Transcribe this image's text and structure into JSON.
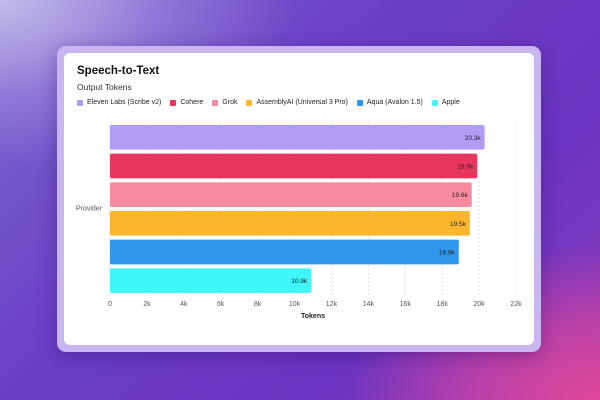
{
  "chart_data": {
    "type": "bar",
    "orientation": "horizontal",
    "title": "Speech-to-Text",
    "subtitle": "Output Tokens",
    "ylabel": "Provider",
    "xlabel": "Tokens",
    "xlim": [
      0,
      22000
    ],
    "xticks": [
      {
        "value": 0,
        "label": "0"
      },
      {
        "value": 2000,
        "label": "2k"
      },
      {
        "value": 4000,
        "label": "4k"
      },
      {
        "value": 6000,
        "label": "6k"
      },
      {
        "value": 8000,
        "label": "8k"
      },
      {
        "value": 10000,
        "label": "10k"
      },
      {
        "value": 12000,
        "label": "12k"
      },
      {
        "value": 14000,
        "label": "14k"
      },
      {
        "value": 16000,
        "label": "16k"
      },
      {
        "value": 18000,
        "label": "18k"
      },
      {
        "value": 20000,
        "label": "20k"
      },
      {
        "value": 22000,
        "label": "22k"
      }
    ],
    "grid": true,
    "legend_position": "top-left",
    "series": [
      {
        "name": "Eleven Labs (Scribe v2)",
        "value": 20300,
        "label": "20.3k",
        "color": "#b19cf5"
      },
      {
        "name": "Cohere",
        "value": 19900,
        "label": "19.9k",
        "color": "#e8375f"
      },
      {
        "name": "Grok",
        "value": 19600,
        "label": "19.6k",
        "color": "#f78a9e"
      },
      {
        "name": "AssemblyAI (Universal 3 Pro)",
        "value": 19500,
        "label": "19.5k",
        "color": "#fbb62e"
      },
      {
        "name": "Aqua (Avalon 1.5)",
        "value": 18900,
        "label": "18.9k",
        "color": "#2f97ee"
      },
      {
        "name": "Apple",
        "value": 10900,
        "label": "10.9k",
        "color": "#3ff7fb"
      }
    ]
  }
}
